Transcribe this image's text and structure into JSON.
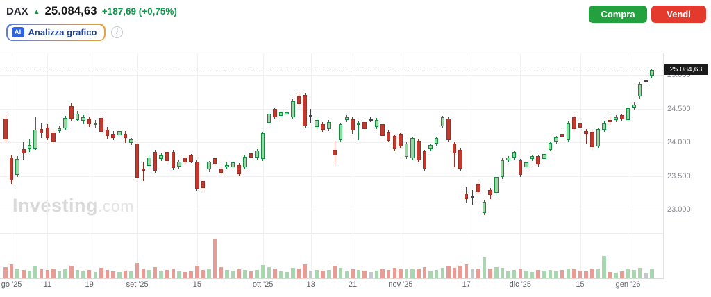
{
  "header": {
    "symbol": "DAX",
    "price": "25.084,63",
    "change": "+187,69",
    "change_pct": "(+0,75%)",
    "ai_badge": "AI",
    "ai_label": "Analizza grafico",
    "info_glyph": "i",
    "buy_label": "Compra",
    "sell_label": "Vendi"
  },
  "watermark": {
    "main": "Investing",
    "suffix": ".com"
  },
  "colors": {
    "up_border": "#0f8f3e",
    "up_fill": "#9ed3a8",
    "down_border": "#9c2f26",
    "down_fill": "#c2392d",
    "neutral": "#3f4246",
    "vol_up": "#a9d5b1",
    "vol_down": "#e79d95",
    "vol_neutral": "#c4c7cc",
    "buy_green": "#23a13e",
    "sell_red": "#e33a2d",
    "change_green": "#0b9a4a"
  },
  "chart_data": {
    "type": "candlestick",
    "title": "DAX daily candlestick with volume",
    "last_price": 25084.63,
    "last_price_label": "25.084,63",
    "price_axis": {
      "tick_values": [
        25000,
        24500,
        24000,
        23500,
        23000
      ],
      "tick_labels": [
        "25.000",
        "24.500",
        "24.000",
        "23.500",
        "23.000"
      ]
    },
    "x_axis": {
      "ticks": [
        {
          "label": "go '25",
          "index": 1
        },
        {
          "label": "11",
          "index": 7
        },
        {
          "label": "19",
          "index": 14
        },
        {
          "label": "set '25",
          "index": 22
        },
        {
          "label": "15",
          "index": 32
        },
        {
          "label": "ott '25",
          "index": 43
        },
        {
          "label": "13",
          "index": 51
        },
        {
          "label": "21",
          "index": 58
        },
        {
          "label": "nov '25",
          "index": 66
        },
        {
          "label": "17",
          "index": 77
        },
        {
          "label": "dic '25",
          "index": 86
        },
        {
          "label": "15",
          "index": 96
        },
        {
          "label": "gen '26",
          "index": 104
        }
      ]
    },
    "candles": [
      [
        24350,
        24400,
        23990,
        24040
      ],
      [
        23780,
        23810,
        23390,
        23440
      ],
      [
        23515,
        23800,
        23490,
        23755
      ],
      [
        23900,
        24010,
        23740,
        23840
      ],
      [
        23900,
        24040,
        23855,
        23960
      ],
      [
        23905,
        24370,
        23885,
        24185
      ],
      [
        24195,
        24290,
        24060,
        24135
      ],
      [
        24215,
        24270,
        24030,
        24060
      ],
      [
        24145,
        24185,
        23980,
        24010
      ],
      [
        24165,
        24250,
        24135,
        24205
      ],
      [
        24205,
        24390,
        24185,
        24360
      ],
      [
        24535,
        24575,
        24320,
        24350
      ],
      [
        24330,
        24470,
        24310,
        24425
      ],
      [
        24320,
        24400,
        24280,
        24370
      ],
      [
        24340,
        24380,
        24230,
        24270
      ],
      [
        24260,
        24330,
        24220,
        24290
      ],
      [
        24360,
        24400,
        24120,
        24155
      ],
      [
        24185,
        24230,
        24050,
        24095
      ],
      [
        24125,
        24165,
        24030,
        24070
      ],
      [
        24105,
        24200,
        24080,
        24165
      ],
      [
        24125,
        24165,
        23990,
        24060
      ],
      [
        23990,
        24060,
        23960,
        24040
      ],
      [
        23980,
        23995,
        23445,
        23475
      ],
      [
        23610,
        23700,
        23425,
        23580
      ],
      [
        23650,
        23805,
        23620,
        23775
      ],
      [
        23855,
        23895,
        23545,
        23580
      ],
      [
        23755,
        23835,
        23720,
        23805
      ],
      [
        23855,
        23880,
        23700,
        23730
      ],
      [
        23855,
        23890,
        23590,
        23620
      ],
      [
        23640,
        23750,
        23610,
        23710
      ],
      [
        23775,
        23800,
        23670,
        23700
      ],
      [
        23805,
        23830,
        23690,
        23720
      ],
      [
        23720,
        23750,
        23280,
        23310
      ],
      [
        23425,
        23450,
        23290,
        23320
      ],
      [
        23600,
        23730,
        23560,
        23710
      ],
      [
        23765,
        23790,
        23640,
        23670
      ],
      [
        23610,
        23650,
        23520,
        23555
      ],
      [
        23630,
        23700,
        23600,
        23660
      ],
      [
        23630,
        23730,
        23600,
        23700
      ],
      [
        23660,
        23690,
        23500,
        23525
      ],
      [
        23630,
        23810,
        23600,
        23785
      ],
      [
        23835,
        23860,
        23740,
        23775
      ],
      [
        23775,
        23900,
        23750,
        23875
      ],
      [
        23755,
        24160,
        23730,
        24135
      ],
      [
        24290,
        24450,
        24260,
        24425
      ],
      [
        24495,
        24520,
        24340,
        24370
      ],
      [
        24390,
        24470,
        24370,
        24445
      ],
      [
        24415,
        24480,
        24380,
        24445
      ],
      [
        24370,
        24640,
        24350,
        24610
      ],
      [
        24680,
        24730,
        24540,
        24565
      ],
      [
        24700,
        24730,
        24210,
        24240
      ],
      [
        24400,
        24495,
        24290,
        24390
      ],
      [
        24225,
        24360,
        24200,
        24330
      ],
      [
        24270,
        24300,
        24160,
        24185
      ],
      [
        24195,
        24330,
        24170,
        24300
      ],
      [
        23885,
        24010,
        23670,
        23805
      ],
      [
        24030,
        24290,
        24010,
        24270
      ],
      [
        24330,
        24400,
        24300,
        24370
      ],
      [
        24340,
        24370,
        24130,
        24175
      ],
      [
        24260,
        24310,
        24030,
        24290
      ],
      [
        24300,
        24330,
        24170,
        24195
      ],
      [
        24350,
        24380,
        24300,
        24342
      ],
      [
        24225,
        24360,
        24200,
        24330
      ],
      [
        24270,
        24290,
        24070,
        24095
      ],
      [
        24155,
        24180,
        24000,
        24020
      ],
      [
        24095,
        24120,
        23870,
        23895
      ],
      [
        24125,
        24150,
        23910,
        23940
      ],
      [
        23785,
        24000,
        23760,
        23980
      ],
      [
        23765,
        24080,
        23740,
        24070
      ],
      [
        24020,
        24050,
        23715,
        23740
      ],
      [
        23865,
        23895,
        23580,
        23610
      ],
      [
        23905,
        23970,
        23870,
        23960
      ],
      [
        23980,
        24090,
        23955,
        24070
      ],
      [
        24240,
        24390,
        24215,
        24370
      ],
      [
        24350,
        24380,
        24000,
        24030
      ],
      [
        23980,
        24010,
        23630,
        23835
      ],
      [
        23885,
        23910,
        23580,
        23610
      ],
      [
        23240,
        23330,
        23100,
        23155
      ],
      [
        23200,
        23290,
        23080,
        23190
      ],
      [
        23390,
        23420,
        23230,
        23260
      ],
      [
        22955,
        23150,
        22920,
        23115
      ],
      [
        23290,
        23320,
        23160,
        23220
      ],
      [
        23250,
        23510,
        23220,
        23485
      ],
      [
        23490,
        23770,
        23460,
        23740
      ],
      [
        23735,
        23800,
        23710,
        23775
      ],
      [
        23775,
        23880,
        23750,
        23855
      ],
      [
        23735,
        23760,
        23490,
        23515
      ],
      [
        23630,
        23730,
        23605,
        23700
      ],
      [
        23755,
        23820,
        23730,
        23795
      ],
      [
        23795,
        23820,
        23645,
        23670
      ],
      [
        23755,
        23850,
        23730,
        23825
      ],
      [
        23890,
        24010,
        23865,
        23990
      ],
      [
        24010,
        24095,
        23985,
        24075
      ],
      [
        24125,
        24200,
        23980,
        24085
      ],
      [
        24035,
        24310,
        24010,
        24290
      ],
      [
        24370,
        24400,
        24170,
        24195
      ],
      [
        24290,
        24320,
        24190,
        24220
      ],
      [
        24165,
        24200,
        23985,
        24125
      ],
      [
        24160,
        24190,
        23900,
        23930
      ],
      [
        23940,
        24220,
        23915,
        24195
      ],
      [
        24185,
        24320,
        24160,
        24290
      ],
      [
        24330,
        24390,
        24270,
        24300
      ],
      [
        24330,
        24400,
        24305,
        24370
      ],
      [
        24400,
        24430,
        24310,
        24340
      ],
      [
        24330,
        24530,
        24305,
        24505
      ],
      [
        24515,
        24600,
        24490,
        24560
      ],
      [
        24680,
        24900,
        24655,
        24865
      ],
      [
        24920,
        24975,
        24855,
        24930
      ],
      [
        24990,
        25095,
        24955,
        25075
      ]
    ],
    "volumes": [
      16,
      20,
      14,
      12,
      11,
      17,
      13,
      12,
      14,
      10,
      13,
      18,
      12,
      10,
      12,
      9,
      15,
      12,
      10,
      9,
      11,
      10,
      22,
      14,
      12,
      16,
      10,
      12,
      14,
      10,
      9,
      10,
      18,
      12,
      13,
      57,
      16,
      12,
      11,
      13,
      12,
      10,
      12,
      19,
      16,
      14,
      10,
      9,
      15,
      14,
      20,
      11,
      12,
      11,
      12,
      18,
      15,
      10,
      13,
      12,
      11,
      9,
      11,
      13,
      12,
      15,
      13,
      14,
      13,
      14,
      16,
      10,
      12,
      15,
      17,
      15,
      18,
      20,
      13,
      14,
      30,
      14,
      16,
      15,
      10,
      12,
      14,
      11,
      9,
      12,
      11,
      12,
      10,
      12,
      14,
      13,
      11,
      10,
      14,
      13,
      32,
      9,
      8,
      10,
      13,
      12,
      15,
      7,
      13
    ]
  }
}
